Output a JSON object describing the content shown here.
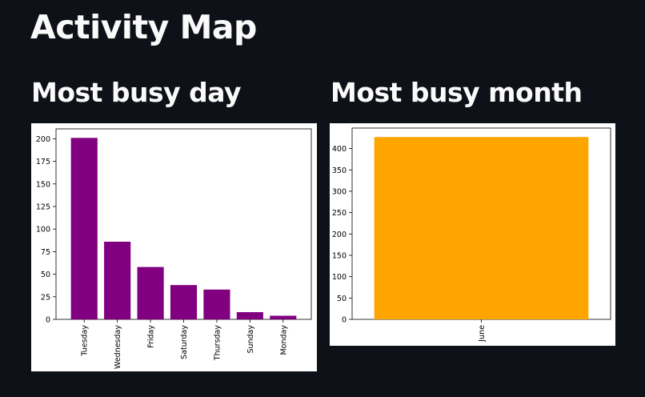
{
  "page": {
    "title": "Activity Map"
  },
  "left": {
    "heading": "Most busy day"
  },
  "right": {
    "heading": "Most busy month"
  },
  "chart_data": [
    {
      "type": "bar",
      "title": "",
      "xlabel": "",
      "ylabel": "",
      "categories": [
        "Tuesday",
        "Wednesday",
        "Friday",
        "Saturday",
        "Thursday",
        "Sunday",
        "Monday"
      ],
      "values": [
        201,
        86,
        58,
        38,
        33,
        8,
        4
      ],
      "ylim": [
        0,
        211
      ],
      "yticks": [
        0,
        25,
        50,
        75,
        100,
        125,
        150,
        175,
        200
      ],
      "color": "#800080",
      "grid": false
    },
    {
      "type": "bar",
      "title": "",
      "xlabel": "",
      "ylabel": "",
      "categories": [
        "June"
      ],
      "values": [
        427
      ],
      "ylim": [
        0,
        448
      ],
      "yticks": [
        0,
        50,
        100,
        150,
        200,
        250,
        300,
        350,
        400
      ],
      "color": "#FFA500",
      "grid": false
    }
  ]
}
